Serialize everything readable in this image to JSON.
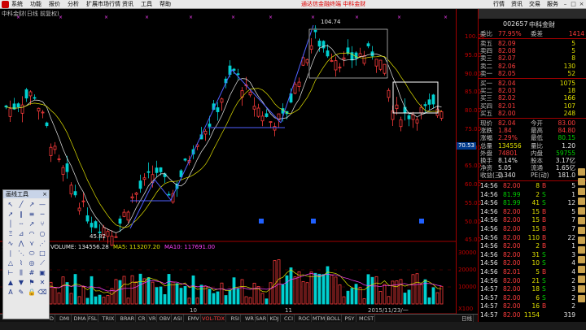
{
  "menu": {
    "items": [
      "系统",
      "功能",
      "报价",
      "分析",
      "扩展市场行情",
      "资讯",
      "工具",
      "帮助"
    ],
    "center_title": "通达信金融终端",
    "center_subtitle": "中科金财",
    "right_tabs": [
      "行情",
      "资讯",
      "交易",
      "服务"
    ]
  },
  "chart": {
    "title": "中科金财(日线 前复权)",
    "high_label": "104.74",
    "low_label": "45.82",
    "cursor_value": "70.53",
    "price_ticks": [
      "100.00",
      "95.00",
      "90.00",
      "85.00",
      "80.00",
      "75.00",
      "70.00",
      "65.00",
      "60.00",
      "55.00",
      "50.00",
      "45.00"
    ],
    "vol_ticks": [
      "30000",
      "20000",
      "10000",
      "X100"
    ],
    "month_labels": [
      "10",
      "11"
    ],
    "date_box": "2015/11/23/一",
    "colors": {
      "up": "#ff3c3c",
      "down": "#00d0d0",
      "ma5": "#e8e8e8",
      "ma10": "#e0e000",
      "frame": "#a00000"
    }
  },
  "volume": {
    "label": "VOLUME: 134556.28",
    "ma5": "MA5: 113207.20",
    "ma10": "MA10: 117691.00",
    "left_value": "134556.28"
  },
  "bottom_tabs": [
    "D",
    "DMI",
    "DMA",
    "FSL",
    "TRIX",
    "BRAR",
    "CR",
    "VR",
    "OBV",
    "ASI",
    "EMV",
    "VOL-TDX",
    "RSI",
    "WR",
    "SAR",
    "KDJ",
    "CCI",
    "ROC",
    "MTM",
    "BOLL",
    "PSY",
    "MCST"
  ],
  "bottom_right": "日线",
  "quote": {
    "code": "002657",
    "name": "中科金财",
    "weibi_label": "委比",
    "weibi": "77.95%",
    "weicha_label": "委差",
    "weicha": "1414",
    "sells": [
      {
        "label": "卖五",
        "price": "82.09",
        "vol": "5"
      },
      {
        "label": "卖四",
        "price": "82.08",
        "vol": "5"
      },
      {
        "label": "卖三",
        "price": "82.07",
        "vol": "8"
      },
      {
        "label": "卖二",
        "price": "82.06",
        "vol": "130"
      },
      {
        "label": "卖一",
        "price": "82.05",
        "vol": "52"
      }
    ],
    "buys": [
      {
        "label": "买一",
        "price": "82.04",
        "vol": "1075"
      },
      {
        "label": "买二",
        "price": "82.03",
        "vol": "18"
      },
      {
        "label": "买三",
        "price": "82.02",
        "vol": "166"
      },
      {
        "label": "买四",
        "price": "82.01",
        "vol": "107"
      },
      {
        "label": "买五",
        "price": "82.00",
        "vol": "248"
      }
    ],
    "stats": [
      {
        "l1": "现价",
        "v1": "82.04",
        "l2": "今开",
        "v2": "83.00"
      },
      {
        "l1": "涨跌",
        "v1": "1.84",
        "l2": "最高",
        "v2": "84.80"
      },
      {
        "l1": "涨幅",
        "v1": "2.29%",
        "l2": "最低",
        "v2": "80.15"
      },
      {
        "l1": "总量",
        "v1": "134556",
        "l2": "量比",
        "v2": "1.20"
      },
      {
        "l1": "外盘",
        "v1": "74801",
        "l2": "内盘",
        "v2": "59755"
      },
      {
        "l1": "换手",
        "v1": "8.14%",
        "l2": "股本",
        "v2": "3.17亿"
      },
      {
        "l1": "净资",
        "v1": "5.05",
        "l2": "流通",
        "v2": "1.65亿"
      },
      {
        "l1": "收益(三)",
        "v1": "0.340",
        "l2": "PE(动)",
        "v2": "181.0"
      }
    ],
    "trades": [
      {
        "time": "14:56",
        "price": "82.00",
        "vol": "8",
        "flag": "B",
        "cnt": "5"
      },
      {
        "time": "14:56",
        "price": "81.99",
        "vol": "2",
        "flag": "S",
        "cnt": "1"
      },
      {
        "time": "14:56",
        "price": "81.99",
        "vol": "41",
        "flag": "S",
        "cnt": "12"
      },
      {
        "time": "14:56",
        "price": "82.00",
        "vol": "15",
        "flag": "B",
        "cnt": "5"
      },
      {
        "time": "14:56",
        "price": "82.00",
        "vol": "15",
        "flag": "B",
        "cnt": "7"
      },
      {
        "time": "14:56",
        "price": "82.00",
        "vol": "15",
        "flag": "B",
        "cnt": "7"
      },
      {
        "time": "14:56",
        "price": "82.00",
        "vol": "110",
        "flag": "B",
        "cnt": "22"
      },
      {
        "time": "14:56",
        "price": "82.00",
        "vol": "2",
        "flag": "B",
        "cnt": "1"
      },
      {
        "time": "14:56",
        "price": "82.00",
        "vol": "31",
        "flag": "S",
        "cnt": "3"
      },
      {
        "time": "14:56",
        "price": "82.00",
        "vol": "10",
        "flag": "S",
        "cnt": "4"
      },
      {
        "time": "14:56",
        "price": "82.01",
        "vol": "5",
        "flag": "B",
        "cnt": "4"
      },
      {
        "time": "14:56",
        "price": "82.00",
        "vol": "21",
        "flag": "S",
        "cnt": "2"
      },
      {
        "time": "14:57",
        "price": "82.00",
        "vol": "18",
        "flag": "S",
        "cnt": "3"
      },
      {
        "time": "14:57",
        "price": "82.00",
        "vol": "6",
        "flag": "S",
        "cnt": "2"
      },
      {
        "time": "14:57",
        "price": "82.00",
        "vol": "16",
        "flag": "B",
        "cnt": "2"
      },
      {
        "time": "14:57",
        "price": "82.00",
        "vol": "1154",
        "flag": "",
        "cnt": "319"
      }
    ]
  },
  "tools_title": "画线工具",
  "tools": [
    "cursor-icon",
    "line-icon",
    "ray-icon",
    "segment-icon",
    "arrow-icon",
    "parallel-icon",
    "channel-icon",
    "hline-icon",
    "vline-icon",
    "price-line-icon",
    "trend-icon",
    "fork-icon",
    "fibo-icon",
    "gann-icon",
    "arc-icon",
    "circle-icon",
    "wave-icon",
    "zigzag-icon",
    "pitch-icon",
    "speed-icon",
    "period-icon",
    "fan-icon",
    "ellipse-icon",
    "rect-icon",
    "triangle-icon",
    "polyline-icon",
    "cycle-icon",
    "regression-icon",
    "ruler-icon",
    "bars-icon",
    "grid-icon",
    "box-icon",
    "up-icon",
    "down-icon",
    "flag-icon",
    "mark-icon",
    "text-icon",
    "eraser-icon",
    "lock-icon",
    "delete-icon"
  ],
  "tool_glyphs": [
    "↖",
    "╱",
    "↗",
    "—",
    "➚",
    "∥",
    "≡",
    "─",
    "│",
    "┄",
    "↗",
    "⑂",
    "Ξ",
    "⊿",
    "◠",
    "○",
    "∿",
    "⋀",
    "⋎",
    "⋰",
    "∣",
    "⋱",
    "⬭",
    "□",
    "△",
    "⌇",
    "◎",
    "⟋",
    "⊢",
    "⫼",
    "#",
    "▣",
    "▲",
    "▼",
    "⚑",
    "✕",
    "A",
    "✎",
    "🔒",
    "⌫"
  ]
}
